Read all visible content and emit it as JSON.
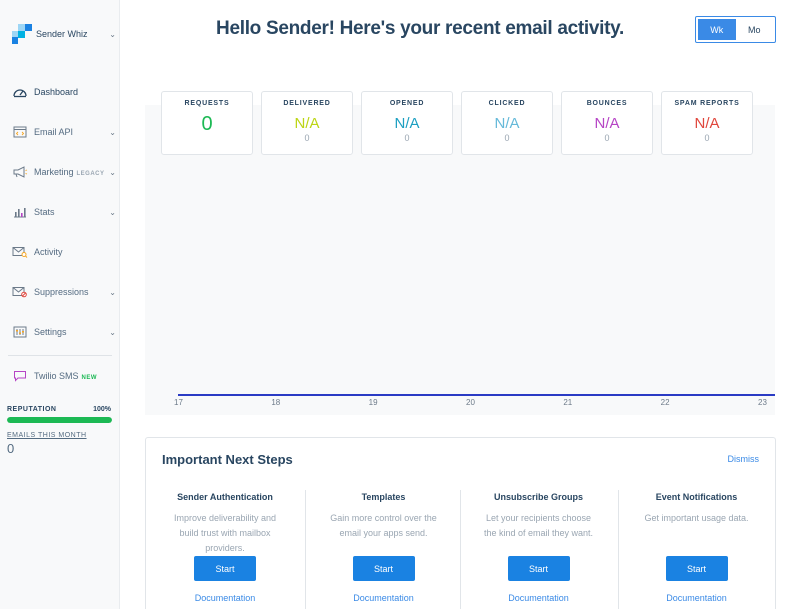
{
  "sidebar": {
    "account_name": "Sender Whiz",
    "nav": [
      {
        "label": "Dashboard",
        "icon": "gauge-icon",
        "chevron": false,
        "active": true
      },
      {
        "label": "Email API",
        "icon": "code-window-icon",
        "chevron": true
      },
      {
        "label": "Marketing",
        "icon": "megaphone-icon",
        "chevron": true,
        "tag": "LEGACY"
      },
      {
        "label": "Stats",
        "icon": "bar-chart-icon",
        "chevron": true
      },
      {
        "label": "Activity",
        "icon": "envelope-search-icon",
        "chevron": false
      },
      {
        "label": "Suppressions",
        "icon": "envelope-block-icon",
        "chevron": true
      },
      {
        "label": "Settings",
        "icon": "sliders-icon",
        "chevron": true
      }
    ],
    "sms": {
      "label": "Twilio SMS",
      "tag": "NEW",
      "icon": "chat-bubble-icon"
    },
    "reputation": {
      "label": "REPUTATION",
      "value_text": "100%",
      "percent": 100
    },
    "emails_month": {
      "label": "EMAILS THIS MONTH",
      "value": "0"
    }
  },
  "header": {
    "title": "Hello Sender! Here's your recent email activity.",
    "toggle": {
      "options": [
        "Wk",
        "Mo"
      ],
      "selected": "Wk"
    }
  },
  "stats": [
    {
      "label": "REQUESTS",
      "value": "0",
      "count": "",
      "color": "#1cb954"
    },
    {
      "label": "DELIVERED",
      "value": "N/A",
      "count": "0",
      "color": "#bcd514"
    },
    {
      "label": "OPENED",
      "value": "N/A",
      "count": "0",
      "color": "#1c9fc1"
    },
    {
      "label": "CLICKED",
      "value": "N/A",
      "count": "0",
      "color": "#65b9d9"
    },
    {
      "label": "BOUNCES",
      "value": "N/A",
      "count": "0",
      "color": "#b644c5"
    },
    {
      "label": "SPAM REPORTS",
      "value": "N/A",
      "count": "0",
      "color": "#e0463c"
    }
  ],
  "chart_data": {
    "type": "line",
    "categories": [
      "17",
      "18",
      "19",
      "20",
      "21",
      "22",
      "23"
    ],
    "series": [
      {
        "values": [
          0,
          0,
          0,
          0,
          0,
          0,
          0
        ]
      }
    ],
    "line_color": "#2a3bc4",
    "grid": false
  },
  "next_steps": {
    "title": "Important Next Steps",
    "dismiss": "Dismiss",
    "items": [
      {
        "title": "Sender Authentication",
        "desc": "Improve deliverability and build trust with mailbox providers.",
        "button": "Start",
        "link": "Documentation"
      },
      {
        "title": "Templates",
        "desc": "Gain more control over the email your apps send.",
        "button": "Start",
        "link": "Documentation"
      },
      {
        "title": "Unsubscribe Groups",
        "desc": "Let your recipients choose the kind of email they want.",
        "button": "Start",
        "link": "Documentation"
      },
      {
        "title": "Event Notifications",
        "desc": "Get important usage data.",
        "button": "Start",
        "link": "Documentation"
      }
    ]
  }
}
